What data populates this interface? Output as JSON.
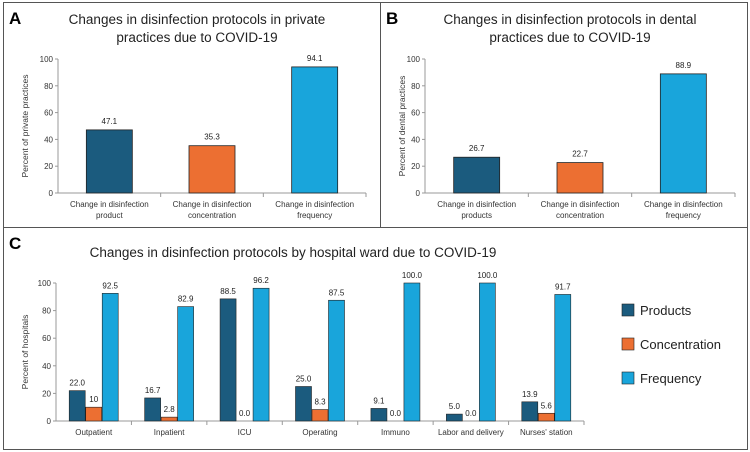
{
  "colors": {
    "products": "#1b5b7e",
    "concentration": "#ec6f32",
    "frequency": "#19a5db",
    "axis": "#999999",
    "border": "#555555"
  },
  "chart_data": [
    {
      "panel": "A",
      "type": "bar",
      "title_lines": [
        "Changes in disinfection protocols in private",
        "practices due to COVID-19"
      ],
      "categories": [
        [
          "Change in disinfection",
          "product"
        ],
        [
          "Change in disinfection",
          "concentration"
        ],
        [
          "Change in disinfection",
          "frequency"
        ]
      ],
      "values": [
        47.1,
        35.3,
        94.1
      ],
      "value_labels": [
        "47.1",
        "35.3",
        "94.1"
      ],
      "bar_colors": [
        "products",
        "concentration",
        "frequency"
      ],
      "ylabel": "Percent of private practices",
      "ylim": [
        0,
        100
      ],
      "yticks": [
        "0",
        "20",
        "40",
        "60",
        "80",
        "100"
      ]
    },
    {
      "panel": "B",
      "type": "bar",
      "title_lines": [
        "Changes in disinfection protocols in dental",
        "practices due to COVID-19"
      ],
      "categories": [
        [
          "Change in disinfection",
          "products"
        ],
        [
          "Change in disinfection",
          "concentration"
        ],
        [
          "Change in disinfection",
          "frequency"
        ]
      ],
      "values": [
        26.7,
        22.7,
        88.9
      ],
      "value_labels": [
        "26.7",
        "22.7",
        "88.9"
      ],
      "bar_colors": [
        "products",
        "concentration",
        "frequency"
      ],
      "ylabel": "Percent of dental practices",
      "ylim": [
        0,
        100
      ],
      "yticks": [
        "0",
        "20",
        "40",
        "60",
        "80",
        "100"
      ]
    },
    {
      "panel": "C",
      "type": "bar",
      "title_lines": [
        "Changes in disinfection protocols by hospital ward due to COVID-19"
      ],
      "categories": [
        "Outpatient",
        "Inpatient",
        "ICU",
        "Operating",
        "Immuno",
        "Labor and delivery",
        "Nurses' station"
      ],
      "series": [
        {
          "name": "Products",
          "color": "products",
          "values": [
            22.0,
            16.7,
            88.5,
            25.0,
            9.1,
            5.0,
            13.9
          ],
          "value_labels": [
            "22.0",
            "16.7",
            "88.5",
            "25.0",
            "9.1",
            "5.0",
            "13.9"
          ]
        },
        {
          "name": "Concentration",
          "color": "concentration",
          "values": [
            10,
            2.8,
            0.0,
            8.3,
            0.0,
            0.0,
            5.6
          ],
          "value_labels": [
            "10",
            "2.8",
            "0.0",
            "8.3",
            "0.0",
            "0.0",
            "5.6"
          ]
        },
        {
          "name": "Frequency",
          "color": "frequency",
          "values": [
            92.5,
            82.9,
            96.2,
            87.5,
            100.0,
            100.0,
            91.7
          ],
          "value_labels": [
            "92.5",
            "82.9",
            "96.2",
            "87.5",
            "100.0",
            "100.0",
            "91.7"
          ]
        }
      ],
      "ylabel": "Percent of hospitals",
      "ylim": [
        0,
        100
      ],
      "yticks": [
        "0",
        "20",
        "40",
        "60",
        "80",
        "100"
      ],
      "legend": "right"
    }
  ]
}
